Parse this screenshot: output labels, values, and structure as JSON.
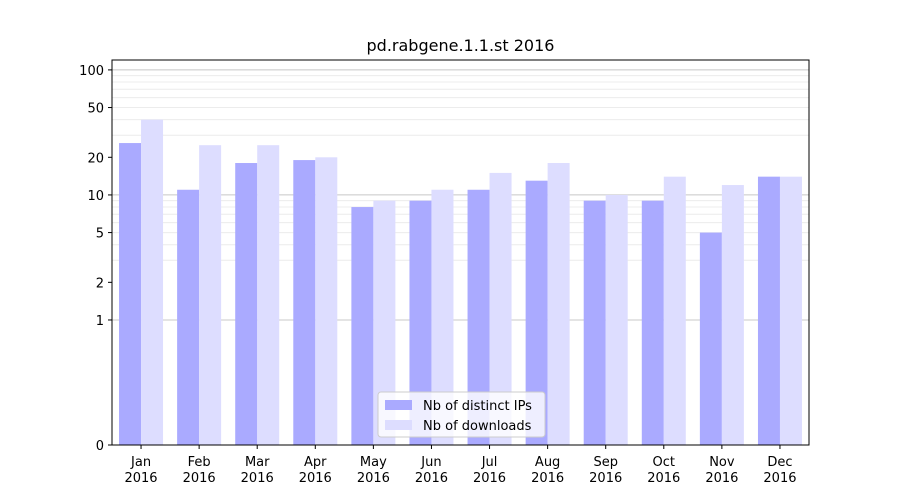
{
  "chart_data": {
    "type": "bar",
    "title": "pd.rabgene.1.1.st 2016",
    "xlabel": "",
    "ylabel": "",
    "yscale": "symlog",
    "ylim": [
      0,
      120
    ],
    "yticks": [
      0,
      1,
      2,
      5,
      10,
      20,
      50,
      100
    ],
    "grid": true,
    "legend_position": "bottom-center",
    "categories": [
      "Jan\n2016",
      "Feb\n2016",
      "Mar\n2016",
      "Apr\n2016",
      "May\n2016",
      "Jun\n2016",
      "Jul\n2016",
      "Aug\n2016",
      "Sep\n2016",
      "Oct\n2016",
      "Nov\n2016",
      "Dec\n2016"
    ],
    "series": [
      {
        "name": "Nb of distinct IPs",
        "color": "#aaaaff",
        "values": [
          26,
          11,
          18,
          19,
          8,
          9,
          11,
          13,
          9,
          9,
          5,
          14
        ]
      },
      {
        "name": "Nb of downloads",
        "color": "#ddddff",
        "values": [
          40,
          25,
          25,
          20,
          9,
          11,
          15,
          18,
          10,
          14,
          12,
          14
        ]
      }
    ]
  }
}
